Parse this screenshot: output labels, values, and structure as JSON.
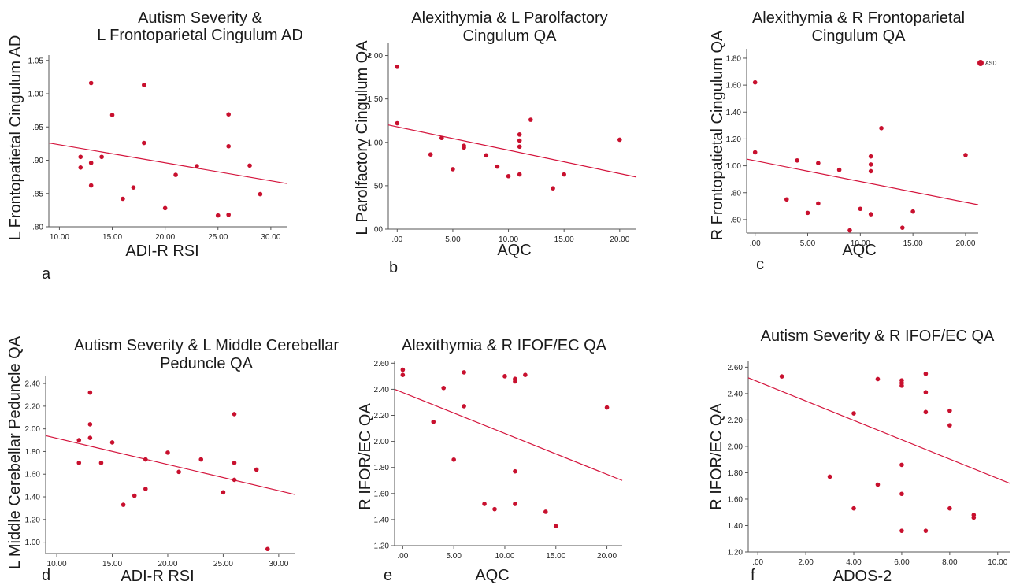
{
  "chart_data": [
    {
      "id": "a",
      "type": "scatter",
      "title": [
        "Autism Severity &",
        "L Frontoparietal Cingulum AD"
      ],
      "xlabel": "ADI-R RSI",
      "ylabel": "L Frontopatietal Cingulum AD",
      "letter": "a",
      "marker_color": "#c8102e",
      "line_color": "#d4143c",
      "xlim": [
        9,
        31.5
      ],
      "ylim": [
        0.8,
        1.058
      ],
      "xticks": [
        10,
        15,
        20,
        25,
        30
      ],
      "xtick_labels": [
        "10.00",
        "15.00",
        "20.00",
        "25.00",
        "30.00"
      ],
      "yticks": [
        0.8,
        0.85,
        0.9,
        0.95,
        1.0,
        1.05
      ],
      "ytick_labels": [
        ".80",
        ".85",
        ".90",
        ".95",
        "1.00",
        "1.05"
      ],
      "x": [
        12,
        12,
        13,
        13,
        13,
        14,
        15,
        16,
        17,
        18,
        18,
        20,
        21,
        23,
        25,
        26,
        26,
        26,
        28,
        29
      ],
      "y": [
        0.905,
        0.889,
        1.016,
        0.896,
        0.862,
        0.905,
        0.968,
        0.842,
        0.859,
        1.013,
        0.926,
        0.828,
        0.878,
        0.891,
        0.817,
        0.969,
        0.921,
        0.818,
        0.892,
        0.849
      ],
      "fit": {
        "x": [
          9,
          31.5
        ],
        "y": [
          0.926,
          0.865
        ]
      },
      "legend": null
    },
    {
      "id": "b",
      "type": "scatter",
      "title": [
        "Alexithymia & L Parolfactory",
        "Cingulum QA"
      ],
      "xlabel": "AQC",
      "ylabel": "L Parolfactory Cingulum QA",
      "letter": "b",
      "marker_color": "#c8102e",
      "line_color": "#d4143c",
      "xlim": [
        -0.8,
        21.5
      ],
      "ylim": [
        0,
        2.15
      ],
      "xticks": [
        0,
        5,
        10,
        15,
        20
      ],
      "xtick_labels": [
        ".00",
        "5.00",
        "10.00",
        "15.00",
        "20.00"
      ],
      "yticks": [
        0,
        0.5,
        1.0,
        1.5,
        2.0
      ],
      "ytick_labels": [
        ".00",
        ".50",
        "1.00",
        "1.50",
        "2.00"
      ],
      "x": [
        0,
        0,
        3,
        4,
        5,
        6,
        6,
        8,
        9,
        10,
        11,
        11,
        11,
        11,
        12,
        14,
        15,
        20
      ],
      "y": [
        1.87,
        1.22,
        0.86,
        1.05,
        0.69,
        0.96,
        0.94,
        0.85,
        0.72,
        0.61,
        1.09,
        1.02,
        0.95,
        0.63,
        1.26,
        0.47,
        0.63,
        1.03
      ],
      "fit": {
        "x": [
          -0.8,
          21.5
        ],
        "y": [
          1.2,
          0.6
        ]
      },
      "legend": null
    },
    {
      "id": "c",
      "type": "scatter",
      "title": [
        "Alexithymia & R Frontoparietal",
        "Cingulum QA"
      ],
      "xlabel": "AQC",
      "ylabel": "R  Frontopatietal Cingulum QA",
      "letter": "c",
      "marker_color": "#c8102e",
      "line_color": "#d4143c",
      "xlim": [
        -0.8,
        21.2
      ],
      "ylim": [
        0.5,
        1.87
      ],
      "xticks": [
        0,
        5,
        10,
        15,
        20
      ],
      "xtick_labels": [
        ".00",
        "5.00",
        "10.00",
        "15.00",
        "20.00"
      ],
      "yticks": [
        0.6,
        0.8,
        1.0,
        1.2,
        1.4,
        1.6,
        1.8
      ],
      "ytick_labels": [
        ".60",
        ".80",
        "1.00",
        "1.20",
        "1.40",
        "1.60",
        "1.80"
      ],
      "x": [
        0,
        0,
        3,
        4,
        5,
        6,
        6,
        8,
        9,
        10,
        11,
        11,
        11,
        11,
        12,
        14,
        15,
        20
      ],
      "y": [
        1.62,
        1.1,
        0.75,
        1.04,
        0.65,
        1.02,
        0.72,
        0.97,
        0.52,
        0.68,
        1.07,
        1.01,
        0.96,
        0.64,
        1.28,
        0.54,
        0.66,
        1.08
      ],
      "fit": {
        "x": [
          -0.8,
          21.2
        ],
        "y": [
          1.05,
          0.71
        ]
      },
      "legend": {
        "label": "ASD",
        "position": "top-right"
      }
    },
    {
      "id": "d",
      "type": "scatter",
      "title": [
        "Autism Severity & L Middle Cerebellar",
        "Peduncle QA"
      ],
      "xlabel": "ADI-R RSI",
      "ylabel": "L Middle Cerebellar Peduncle QA",
      "letter": "d",
      "marker_color": "#c8102e",
      "line_color": "#d4143c",
      "xlim": [
        9,
        31.5
      ],
      "ylim": [
        0.9,
        2.47
      ],
      "xticks": [
        10,
        15,
        20,
        25,
        30
      ],
      "xtick_labels": [
        "10.00",
        "15.00",
        "20.00",
        "25.00",
        "30.00"
      ],
      "yticks": [
        1.0,
        1.2,
        1.4,
        1.6,
        1.8,
        2.0,
        2.2,
        2.4
      ],
      "ytick_labels": [
        "1.00",
        "1.20",
        "1.40",
        "1.60",
        "1.80",
        "2.00",
        "2.20",
        "2.40"
      ],
      "x": [
        12,
        12,
        13,
        13,
        13,
        14,
        15,
        16,
        17,
        18,
        18,
        20,
        21,
        23,
        25,
        26,
        26,
        26,
        28,
        29
      ],
      "y": [
        1.9,
        1.7,
        2.32,
        2.04,
        1.92,
        1.7,
        1.88,
        1.33,
        1.41,
        1.73,
        1.47,
        1.79,
        1.62,
        1.73,
        1.44,
        2.13,
        1.7,
        1.55,
        1.64,
        0.94
      ],
      "fit": {
        "x": [
          9,
          31.5
        ],
        "y": [
          1.94,
          1.42
        ]
      },
      "legend": null
    },
    {
      "id": "e",
      "type": "scatter",
      "title": [
        "Alexithymia & R IFOF/EC QA"
      ],
      "xlabel": "AQC",
      "ylabel": "R IFOR/EC QA",
      "letter": "e",
      "marker_color": "#c8102e",
      "line_color": "#d4143c",
      "xlim": [
        -0.8,
        21.5
      ],
      "ylim": [
        1.2,
        2.62
      ],
      "xticks": [
        0,
        5,
        10,
        15,
        20
      ],
      "xtick_labels": [
        ".00",
        "5.00",
        "10.00",
        "15.00",
        "20.00"
      ],
      "yticks": [
        1.2,
        1.4,
        1.6,
        1.8,
        2.0,
        2.2,
        2.4,
        2.6
      ],
      "ytick_labels": [
        "1.20",
        "1.40",
        "1.60",
        "1.80",
        "2.00",
        "2.20",
        "2.40",
        "2.60"
      ],
      "x": [
        0,
        0,
        3,
        4,
        5,
        6,
        6,
        8,
        9,
        10,
        11,
        11,
        11,
        11,
        12,
        14,
        15,
        20
      ],
      "y": [
        2.55,
        2.51,
        2.15,
        2.41,
        1.86,
        2.53,
        2.27,
        1.52,
        1.48,
        2.5,
        2.48,
        2.46,
        1.77,
        1.52,
        2.51,
        1.46,
        1.35,
        2.26
      ],
      "fit": {
        "x": [
          -0.8,
          21.5
        ],
        "y": [
          2.4,
          1.7
        ]
      },
      "legend": null
    },
    {
      "id": "f",
      "type": "scatter",
      "title": [
        "Autism Severity & R IFOF/EC QA"
      ],
      "xlabel": "ADOS-2",
      "ylabel": "R IFOR/EC QA",
      "letter": "f",
      "marker_color": "#c8102e",
      "line_color": "#d4143c",
      "xlim": [
        -0.4,
        10.5
      ],
      "ylim": [
        1.2,
        2.65
      ],
      "xticks": [
        0,
        2,
        4,
        6,
        8,
        10
      ],
      "xtick_labels": [
        ".00",
        "2.00",
        "4.00",
        "6.00",
        "8.00",
        "10.00"
      ],
      "yticks": [
        1.2,
        1.4,
        1.6,
        1.8,
        2.0,
        2.2,
        2.4,
        2.6
      ],
      "ytick_labels": [
        "1.20",
        "1.40",
        "1.60",
        "1.80",
        "2.00",
        "2.20",
        "2.40",
        "2.60"
      ],
      "x": [
        1,
        3,
        4,
        4,
        5,
        5,
        6,
        6,
        6,
        6,
        6,
        6,
        7,
        7,
        7,
        7,
        8,
        8,
        8,
        9,
        9
      ],
      "y": [
        2.53,
        1.77,
        2.25,
        1.53,
        2.51,
        1.71,
        2.5,
        2.48,
        2.46,
        1.86,
        1.64,
        1.36,
        2.55,
        2.41,
        2.26,
        1.36,
        2.27,
        2.16,
        1.53,
        1.48,
        1.46
      ],
      "fit": {
        "x": [
          -0.4,
          10.5
        ],
        "y": [
          2.52,
          1.72
        ]
      },
      "legend": null
    }
  ]
}
